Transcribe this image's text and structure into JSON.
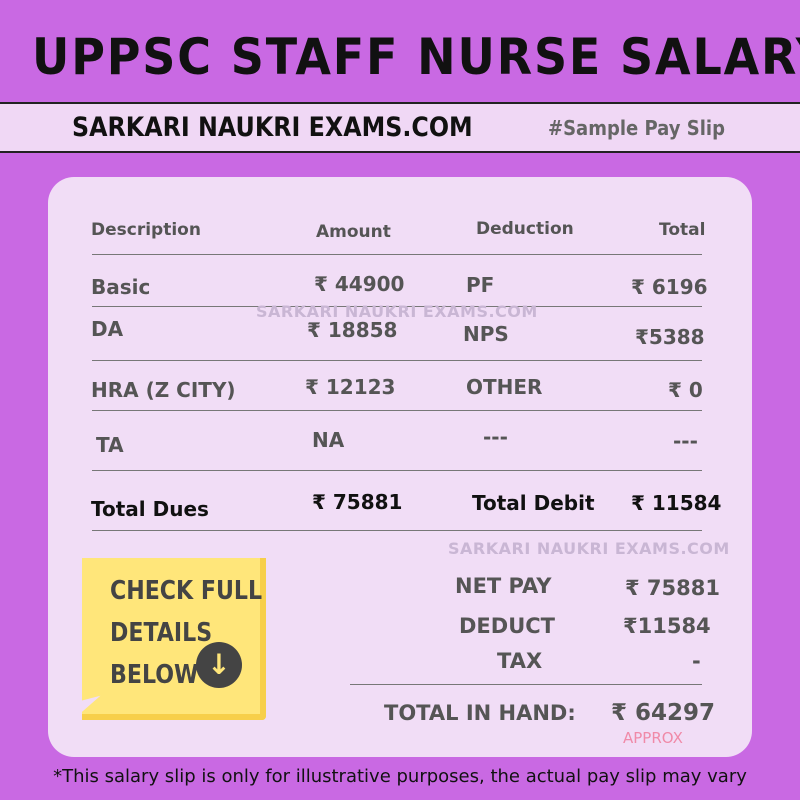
{
  "title": "UPPSC STAFF NURSE SALARY",
  "band": {
    "brand": "SARKARI NAUKRI EXAMS.COM",
    "tag": "#Sample Pay Slip"
  },
  "table": {
    "headers": [
      "Description",
      "Amount",
      "Deduction",
      "Total"
    ],
    "rows": [
      [
        "Basic",
        "₹ 44900",
        "PF",
        "₹ 6196"
      ],
      [
        "DA",
        "₹ 18858",
        "NPS",
        "₹5388"
      ],
      [
        "HRA (Z CITY)",
        "₹ 12123",
        "OTHER",
        "₹ 0"
      ],
      [
        "TA",
        "NA",
        "---",
        "---"
      ]
    ],
    "totals": [
      "Total Dues",
      "₹ 75881",
      "Total Debit",
      "₹ 11584"
    ]
  },
  "watermark": "SARKARI NAUKRI EXAMS.COM",
  "note": {
    "text": "CHECK FULL\nDETAILS\nBELOW",
    "icon": "arrow-down-circle-icon"
  },
  "summary": {
    "net_pay_label": "NET PAY",
    "net_pay": "₹ 75881",
    "deduct_label": "DEDUCT",
    "deduct": "₹11584",
    "tax_label": "TAX",
    "tax": "-",
    "in_hand_label": "TOTAL IN HAND:",
    "in_hand": "₹ 64297",
    "approx": "APPROX"
  },
  "footer": "*This salary slip is only for illustrative purposes, the actual pay slip may vary",
  "colors": {
    "background": "#c969e3",
    "card": "#f1ddf6",
    "note": "#ffe67a",
    "approx": "#f08aa8"
  }
}
